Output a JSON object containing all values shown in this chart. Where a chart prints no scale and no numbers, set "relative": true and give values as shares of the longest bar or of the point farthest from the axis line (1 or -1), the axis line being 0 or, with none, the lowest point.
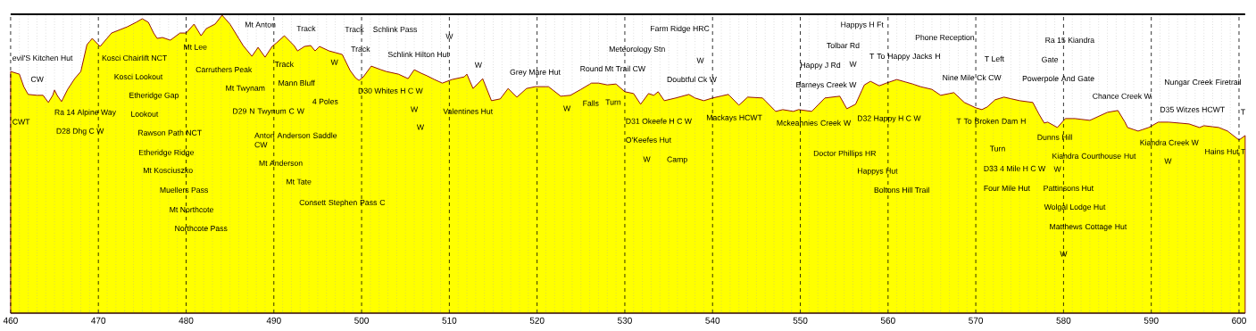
{
  "chart_data": {
    "type": "area",
    "relative": true,
    "color": "#ffff00",
    "grid": true,
    "xlim": [
      460,
      600.7
    ],
    "xticks": [
      460,
      470,
      480,
      490,
      500,
      510,
      520,
      530,
      540,
      550,
      560,
      570,
      580,
      590,
      600
    ],
    "x": [
      460.0,
      461.0,
      461.5,
      462.0,
      463.0,
      463.7,
      464.3,
      464.8,
      465.0,
      465.3,
      465.8,
      466.5,
      467.3,
      468.0,
      468.7,
      469.3,
      470.2,
      471.5,
      473.3,
      474.3,
      475.0,
      475.7,
      476.3,
      476.7,
      477.3,
      478.2,
      479.3,
      480.0,
      480.9,
      481.7,
      482.3,
      483.3,
      484.1,
      485.0,
      486.5,
      487.5,
      488.2,
      489.0,
      489.8,
      490.3,
      491.2,
      492.3,
      492.7,
      493.5,
      494.2,
      494.7,
      495.2,
      496.3,
      497.8,
      498.7,
      499.3,
      499.7,
      500.2,
      501.1,
      502.2,
      502.8,
      504.2,
      505.3,
      506.0,
      506.8,
      507.5,
      508.3,
      509.2,
      510.3,
      511.7,
      512.0,
      512.7,
      513.8,
      514.8,
      515.8,
      516.7,
      517.7,
      518.8,
      519.8,
      521.3,
      522.7,
      523.8,
      525.0,
      526.2,
      527.0,
      528.0,
      529.0,
      530.0,
      531.0,
      531.8,
      532.7,
      533.3,
      533.8,
      534.5,
      535.8,
      537.3,
      538.0,
      539.0,
      540.0,
      541.8,
      543.0,
      544.0,
      545.7,
      547.2,
      548.0,
      549.2,
      549.8,
      551.3,
      552.8,
      554.5,
      555.3,
      556.3,
      557.3,
      558.0,
      559.0,
      559.8,
      561.0,
      562.8,
      563.7,
      565.0,
      566.0,
      567.5,
      568.7,
      570.0,
      570.7,
      571.3,
      572.2,
      573.2,
      575.0,
      576.5,
      577.2,
      577.8,
      578.2,
      579.3,
      580.2,
      581.3,
      583.0,
      585.0,
      586.2,
      587.0,
      587.3,
      588.5,
      589.7,
      590.8,
      592.0,
      594.3,
      595.5,
      596.0,
      597.7,
      598.7,
      600.0,
      600.7
    ],
    "values": [
      0.811,
      0.802,
      0.76,
      0.734,
      0.731,
      0.731,
      0.707,
      0.731,
      0.749,
      0.731,
      0.71,
      0.751,
      0.787,
      0.811,
      0.901,
      0.922,
      0.895,
      0.94,
      0.961,
      0.976,
      0.988,
      0.976,
      0.94,
      0.922,
      0.925,
      0.916,
      0.94,
      0.94,
      0.97,
      0.931,
      0.955,
      0.97,
      1.0,
      0.97,
      0.898,
      0.862,
      0.892,
      0.859,
      0.895,
      0.907,
      0.931,
      0.898,
      0.88,
      0.895,
      0.898,
      0.88,
      0.895,
      0.88,
      0.868,
      0.814,
      0.79,
      0.781,
      0.793,
      0.829,
      0.817,
      0.811,
      0.802,
      0.787,
      0.817,
      0.805,
      0.796,
      0.784,
      0.772,
      0.784,
      0.793,
      0.802,
      0.754,
      0.787,
      0.713,
      0.719,
      0.754,
      0.725,
      0.754,
      0.76,
      0.76,
      0.728,
      0.731,
      0.751,
      0.772,
      0.772,
      0.766,
      0.769,
      0.743,
      0.737,
      0.701,
      0.737,
      0.731,
      0.743,
      0.713,
      0.722,
      0.734,
      0.722,
      0.713,
      0.722,
      0.734,
      0.698,
      0.725,
      0.722,
      0.677,
      0.683,
      0.677,
      0.683,
      0.677,
      0.722,
      0.728,
      0.686,
      0.701,
      0.766,
      0.778,
      0.763,
      0.772,
      0.784,
      0.769,
      0.76,
      0.751,
      0.731,
      0.74,
      0.707,
      0.689,
      0.683,
      0.692,
      0.716,
      0.725,
      0.713,
      0.707,
      0.668,
      0.638,
      0.641,
      0.623,
      0.653,
      0.653,
      0.647,
      0.674,
      0.68,
      0.641,
      0.623,
      0.611,
      0.623,
      0.641,
      0.641,
      0.635,
      0.623,
      0.629,
      0.623,
      0.611,
      0.581,
      0.596
    ],
    "annotations": [
      "evil'S Kitchen Hut",
      "CWT",
      "CW",
      "Ra 14 Alpine Way",
      "D28 Dhg C W",
      "Kosci Chairlift NCT",
      "Kosci Lookout",
      "Etheridge Gap",
      "Lookout",
      "Rawson Path NCT",
      "Etheridge Ridge",
      "Mt Kosciuszko",
      "Muellers Pass",
      "Mt Northcote",
      "Northcote Pass",
      "Mt Lee",
      "Carruthers Peak",
      "Mt Anton",
      "Mt Twynam",
      "D29 N Twynum C W",
      "Anton Anderson Saddle CW",
      "Mt Anderson",
      "Track",
      "Mann Bluff",
      "Mt Tate",
      "Consett Stephen Pass C",
      "Track",
      "4 Poles",
      "W",
      "Track",
      "Schlink Pass",
      "Track",
      "Schlink Hilton Hut",
      "D30 Whites H C W",
      "W",
      "W",
      "W",
      "Valentines Hut",
      "W",
      "Grey Mare Hut",
      "Round Mt Trail CW",
      "W",
      "Falls",
      "Turn",
      "Meteorology Stn",
      "D31 Okeefe H C W",
      "O'Keefes Hut",
      "W",
      "Camp",
      "Farm Ridge HRC",
      "W",
      "Doubtful Ck W",
      "Mackays HCWT",
      "Mckeahnies Creek W",
      "Barneys Creek W",
      "Happy J Rd",
      "Doctor Phillips HR",
      "Tolbar Rd",
      "Happys H Ft",
      "W",
      "T To Happy Jacks H",
      "D32 Happy H C W",
      "Happys Hut",
      "Boltons Hill Trail",
      "Phone Reception",
      "Nine Mile Ck CW",
      "T To Broken Dam H",
      "T Left",
      "Turn",
      "D33 4 Mile H C W",
      "Four Mile Hut",
      "Powerpole And Gate",
      "Dunns Hill",
      "Gate",
      "Ra 15 Kiandra",
      "W",
      "Kiandra Courthouse Hut",
      "Pattinsons Hut",
      "Wolgal Lodge Hut",
      "Matthews Cottage Hut",
      "W",
      "Chance Creek W",
      "Nungar Creek Firetrail",
      "D35 Witzes HCWT",
      "Kiandra Creek W",
      "W",
      "Hains Hut T",
      "T"
    ]
  }
}
